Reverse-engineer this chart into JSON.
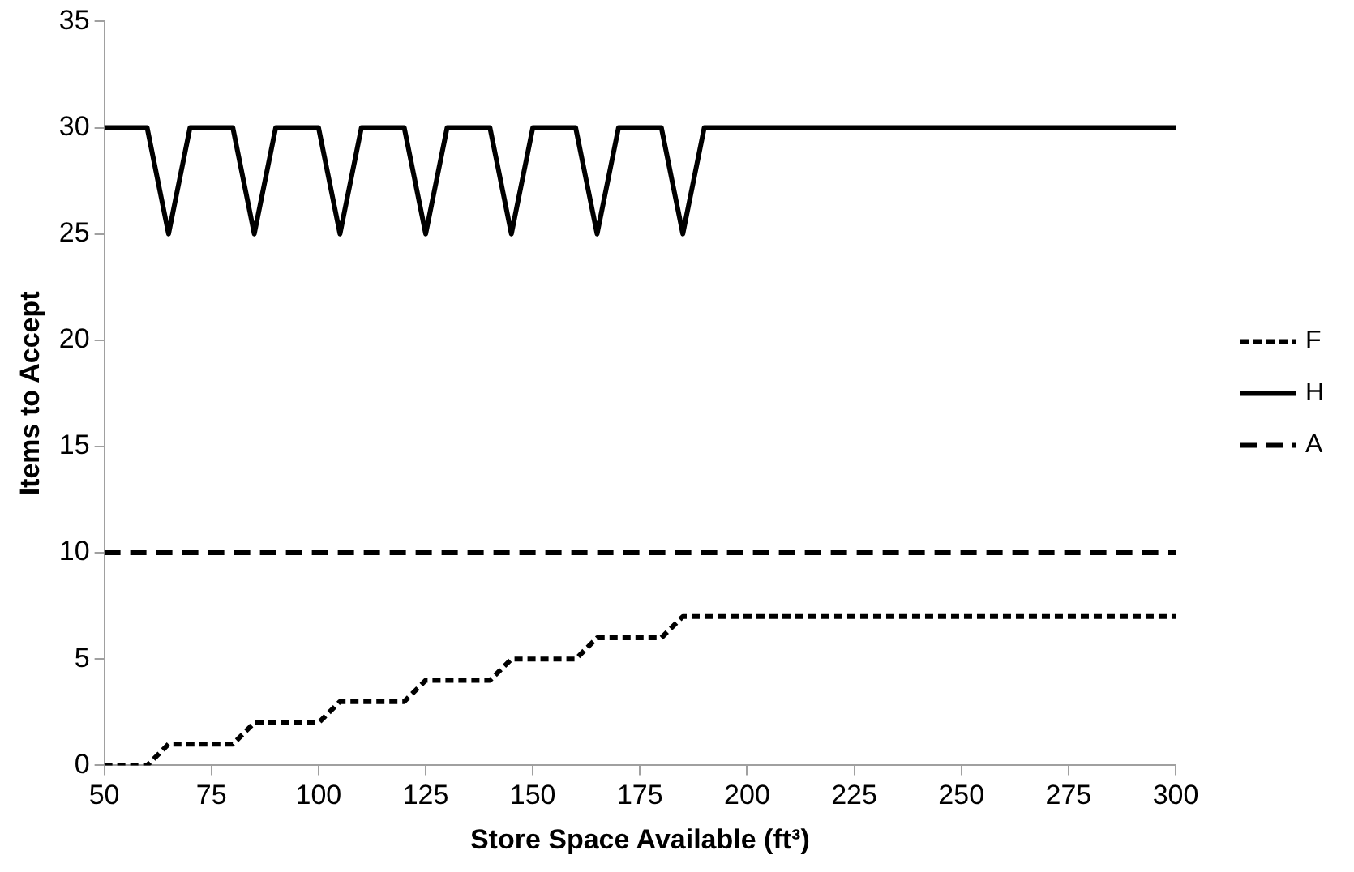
{
  "chart_data": {
    "type": "line",
    "xlabel": "Store Space Available (ft³)",
    "ylabel": "Items to Accept",
    "x": [
      50,
      55,
      60,
      65,
      70,
      75,
      80,
      85,
      90,
      95,
      100,
      105,
      110,
      115,
      120,
      125,
      130,
      135,
      140,
      145,
      150,
      155,
      160,
      165,
      170,
      175,
      180,
      185,
      190,
      195,
      200,
      205,
      210,
      215,
      220,
      225,
      230,
      235,
      240,
      245,
      250,
      255,
      260,
      265,
      270,
      275,
      280,
      285,
      290,
      295,
      300
    ],
    "xlim": [
      50,
      300
    ],
    "xticks": [
      50,
      75,
      100,
      125,
      150,
      175,
      200,
      225,
      250,
      275,
      300
    ],
    "ylim": [
      0,
      35
    ],
    "yticks": [
      0,
      5,
      10,
      15,
      20,
      25,
      30,
      35
    ],
    "grid": false,
    "legend": "right",
    "marker": "none",
    "series": [
      {
        "name": "F",
        "color": "#000000",
        "line_style": "dotted",
        "values": [
          0,
          0,
          0,
          1,
          1,
          1,
          1,
          2,
          2,
          2,
          2,
          3,
          3,
          3,
          3,
          4,
          4,
          4,
          4,
          5,
          5,
          5,
          5,
          6,
          6,
          6,
          6,
          7,
          7,
          7,
          7,
          7,
          7,
          7,
          7,
          7,
          7,
          7,
          7,
          7,
          7,
          7,
          7,
          7,
          7,
          7,
          7,
          7,
          7,
          7,
          7
        ]
      },
      {
        "name": "H",
        "color": "#000000",
        "line_style": "solid",
        "values": [
          30,
          30,
          30,
          25,
          30,
          30,
          30,
          25,
          30,
          30,
          30,
          25,
          30,
          30,
          30,
          25,
          30,
          30,
          30,
          25,
          30,
          30,
          30,
          25,
          30,
          30,
          30,
          25,
          30,
          30,
          30,
          30,
          30,
          30,
          30,
          30,
          30,
          30,
          30,
          30,
          30,
          30,
          30,
          30,
          30,
          30,
          30,
          30,
          30,
          30,
          30
        ]
      },
      {
        "name": "A",
        "color": "#000000",
        "line_style": "dashed",
        "values": [
          10,
          10,
          10,
          10,
          10,
          10,
          10,
          10,
          10,
          10,
          10,
          10,
          10,
          10,
          10,
          10,
          10,
          10,
          10,
          10,
          10,
          10,
          10,
          10,
          10,
          10,
          10,
          10,
          10,
          10,
          10,
          10,
          10,
          10,
          10,
          10,
          10,
          10,
          10,
          10,
          10,
          10,
          10,
          10,
          10,
          10,
          10,
          10,
          10,
          10,
          10
        ]
      }
    ]
  }
}
